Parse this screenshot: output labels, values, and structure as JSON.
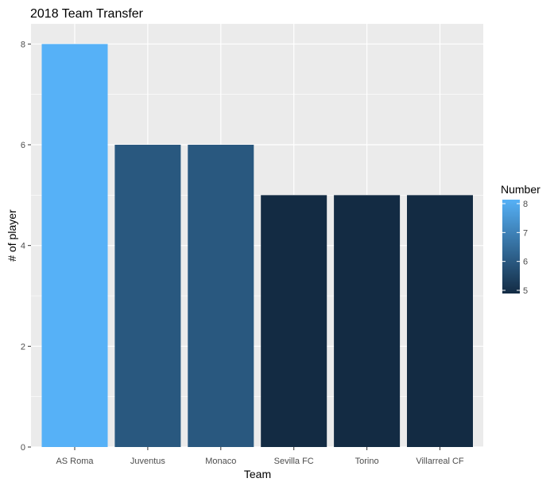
{
  "chart_data": {
    "type": "bar",
    "title": "2018 Team Transfer",
    "xlabel": "Team",
    "ylabel": "# of player",
    "categories": [
      "AS Roma",
      "Juventus",
      "Monaco",
      "Sevilla FC",
      "Torino",
      "Villarreal CF"
    ],
    "values": [
      8,
      6,
      6,
      5,
      5,
      5
    ],
    "ylim": [
      0,
      8.4
    ],
    "yticks": [
      0,
      2,
      4,
      6,
      8
    ],
    "grid": true,
    "legend": {
      "title": "Number",
      "placement": "right",
      "type": "colorbar",
      "ticks": [
        5,
        6,
        7,
        8
      ],
      "low_color": "#132B43",
      "high_color": "#56B1F7"
    },
    "colors": {
      "panel_background": "#EBEBEB",
      "grid_major": "#FFFFFF",
      "low": "#132B43",
      "high": "#56B1F7"
    }
  }
}
